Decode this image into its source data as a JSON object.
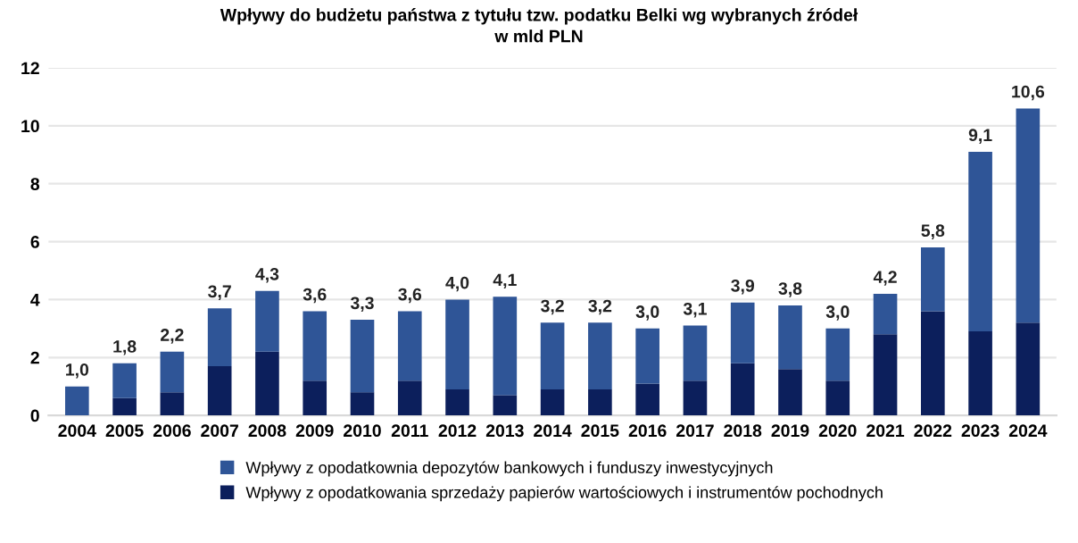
{
  "chart_data": {
    "type": "bar",
    "title": "Wpływy do budżetu państwa z tytułu tzw. podatku Belki wg wybranych źródeł\nw mld PLN",
    "categories": [
      "2004",
      "2005",
      "2006",
      "2007",
      "2008",
      "2009",
      "2010",
      "2011",
      "2012",
      "2013",
      "2014",
      "2015",
      "2016",
      "2017",
      "2018",
      "2019",
      "2020",
      "2021",
      "2022",
      "2023",
      "2024"
    ],
    "stacked": true,
    "series": [
      {
        "name": "Wpływy z opodatkowania sprzedaży papierów wartościowych i instrumentów pochodnych",
        "color": "#0c1f5c",
        "values": [
          0,
          0.6,
          0.8,
          1.7,
          2.2,
          1.2,
          0.8,
          1.2,
          0.9,
          0.7,
          0.9,
          0.9,
          1.1,
          1.2,
          1.8,
          1.6,
          1.2,
          2.8,
          3.6,
          2.9,
          3.2
        ]
      },
      {
        "name": "Wpływy z opodatkownia depozytów bankowych i funduszy inwestycyjnych",
        "color": "#2f5597",
        "values": [
          1.0,
          1.2,
          1.4,
          2.0,
          2.1,
          2.4,
          2.5,
          2.4,
          3.1,
          3.4,
          2.3,
          2.3,
          1.9,
          1.9,
          2.1,
          2.2,
          1.8,
          1.4,
          2.2,
          6.2,
          7.4
        ]
      }
    ],
    "totals": [
      "1,0",
      "1,8",
      "2,2",
      "3,7",
      "4,3",
      "3,6",
      "3,3",
      "3,6",
      "4,0",
      "4,1",
      "3,2",
      "3,2",
      "3,0",
      "3,1",
      "3,9",
      "3,8",
      "3,0",
      "4,2",
      "5,8",
      "9,1",
      "10,6"
    ],
    "ylim": [
      0,
      12
    ],
    "yticks": [
      0,
      2,
      4,
      6,
      8,
      10,
      12
    ],
    "grid": "y",
    "legend": "bottom"
  }
}
